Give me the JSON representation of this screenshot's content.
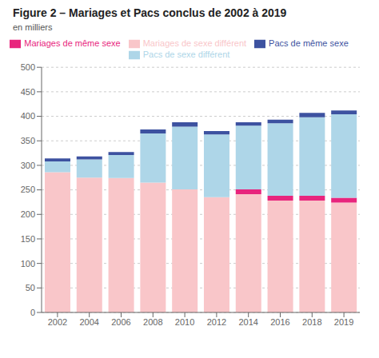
{
  "chart_data": {
    "type": "bar",
    "stacked": true,
    "title": "Figure 2 – Mariages et Pacs conclus de 2002 à 2019",
    "ylabel": "en milliers",
    "categories": [
      "2002",
      "2004",
      "2006",
      "2008",
      "2010",
      "2012",
      "2014",
      "2016",
      "2018",
      "2019"
    ],
    "series": [
      {
        "name": "Mariages de sexe différent",
        "color": "#f9c6c9",
        "values": [
          286,
          275,
          274,
          265,
          251,
          235,
          241,
          228,
          228,
          224
        ]
      },
      {
        "name": "Mariages de même sexe",
        "color": "#e8257d",
        "values": [
          0,
          0,
          0,
          0,
          0,
          0,
          10,
          10,
          10,
          10
        ]
      },
      {
        "name": "Pacs de sexe différent",
        "color": "#aed6e8",
        "values": [
          22,
          37,
          47,
          100,
          128,
          128,
          130,
          148,
          160,
          170
        ]
      },
      {
        "name": "Pacs de même sexe",
        "color": "#3d52a0",
        "values": [
          6,
          6,
          6,
          8,
          9,
          7,
          7,
          7,
          9,
          8
        ]
      }
    ],
    "ylim": [
      0,
      500
    ],
    "yticks": [
      0,
      50,
      100,
      150,
      200,
      250,
      300,
      350,
      400,
      450,
      500
    ],
    "grid": true,
    "legend": "top"
  }
}
